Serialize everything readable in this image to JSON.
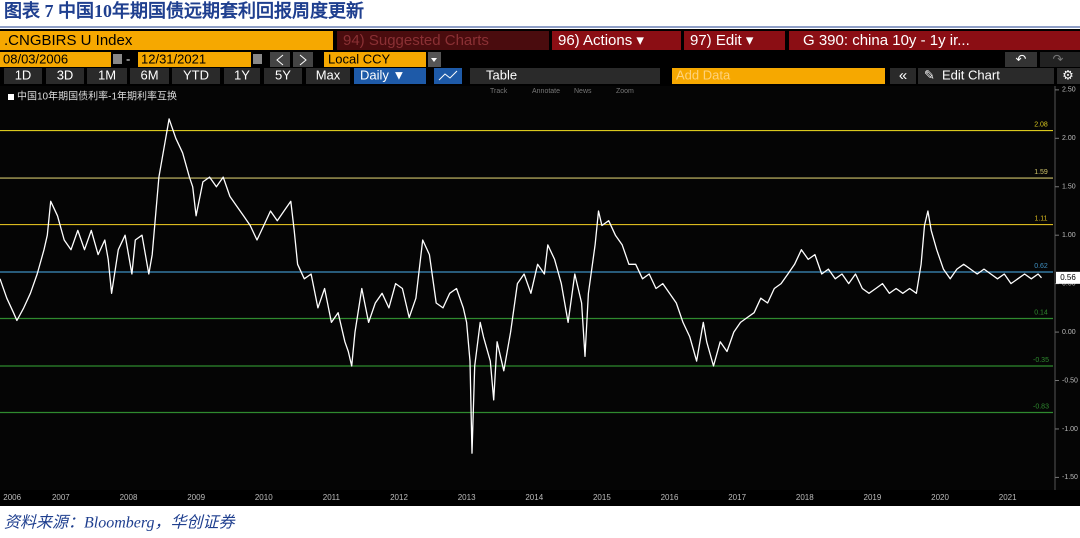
{
  "header": {
    "title": "图表 7  中国10年期国债远期套利回报周度更新"
  },
  "toolbar": {
    "security": ".CNGBIRS U Index",
    "suggested": "94) Suggested Charts",
    "actions": "96) Actions ▾",
    "edit": "97) Edit ▾",
    "function": "G 390: china 10y - 1y ir...",
    "start_date": "08/03/2006",
    "dash": "-",
    "end_date": "12/31/2021",
    "currency": "Local CCY",
    "periods": [
      "1D",
      "3D",
      "1M",
      "6M",
      "YTD",
      "1Y",
      "5Y",
      "Max"
    ],
    "frequency": "Daily ▼",
    "table": "Table",
    "add_data": "Add Data",
    "collapse": "«",
    "edit_chart": "Edit Chart",
    "tools": [
      "Track",
      "Annotate",
      "News",
      "Zoom"
    ]
  },
  "chart_data": {
    "type": "line",
    "xlim": [
      2006.6,
      2022.2
    ],
    "ylim": [
      -1.63,
      2.54
    ],
    "xticks": [
      {
        "value": 2006.78,
        "label": "2006"
      },
      {
        "value": 2007.5,
        "label": "2007"
      },
      {
        "value": 2008.5,
        "label": "2008"
      },
      {
        "value": 2009.5,
        "label": "2009"
      },
      {
        "value": 2010.5,
        "label": "2010"
      },
      {
        "value": 2011.5,
        "label": "2011"
      },
      {
        "value": 2012.5,
        "label": "2012"
      },
      {
        "value": 2013.5,
        "label": "2013"
      },
      {
        "value": 2014.5,
        "label": "2014"
      },
      {
        "value": 2015.5,
        "label": "2015"
      },
      {
        "value": 2016.5,
        "label": "2016"
      },
      {
        "value": 2017.5,
        "label": "2017"
      },
      {
        "value": 2018.5,
        "label": "2018"
      },
      {
        "value": 2019.5,
        "label": "2019"
      },
      {
        "value": 2020.5,
        "label": "2020"
      },
      {
        "value": 2021.5,
        "label": "2021"
      }
    ],
    "yticks": [
      {
        "value": 2.5,
        "label": "2.50"
      },
      {
        "value": 2,
        "label": "2.00"
      },
      {
        "value": 1.5,
        "label": "1.50"
      },
      {
        "value": 1,
        "label": "1.00"
      },
      {
        "value": 0.5,
        "label": "0.50"
      },
      {
        "value": 0,
        "label": "0.00"
      },
      {
        "value": -0.5,
        "label": "-0.50"
      },
      {
        "value": -1,
        "label": "-1.00"
      },
      {
        "value": -1.5,
        "label": "-1.50"
      }
    ],
    "ref_lines": [
      {
        "value": 2.08,
        "color": "#d9c81e"
      },
      {
        "value": 1.59,
        "color": "#cfc46a"
      },
      {
        "value": 1.11,
        "color": "#d9b91e"
      },
      {
        "value": 0.62,
        "color": "#3f8fc0"
      },
      {
        "value": 0.14,
        "color": "#2f8a2f"
      },
      {
        "value": -0.35,
        "color": "#2f8a2f"
      },
      {
        "value": -0.83,
        "color": "#2f8a2f"
      }
    ],
    "series": [
      {
        "name": "中国10年期国债利率-1年期利率互换",
        "color": "#ffffff",
        "x": [
          2006.6,
          2006.7,
          2006.8,
          2006.85,
          2006.95,
          2007.05,
          2007.15,
          2007.25,
          2007.3,
          2007.35,
          2007.45,
          2007.55,
          2007.65,
          2007.75,
          2007.85,
          2007.95,
          2008.05,
          2008.15,
          2008.2,
          2008.25,
          2008.35,
          2008.45,
          2008.55,
          2008.6,
          2008.7,
          2008.8,
          2008.85,
          2008.95,
          2009.05,
          2009.1,
          2009.2,
          2009.3,
          2009.4,
          2009.45,
          2009.5,
          2009.6,
          2009.7,
          2009.8,
          2009.9,
          2010.0,
          2010.1,
          2010.2,
          2010.3,
          2010.4,
          2010.5,
          2010.6,
          2010.7,
          2010.8,
          2010.9,
          2010.95,
          2011.0,
          2011.1,
          2011.2,
          2011.3,
          2011.4,
          2011.5,
          2011.6,
          2011.7,
          2011.75,
          2011.8,
          2011.85,
          2011.95,
          2012.05,
          2012.15,
          2012.25,
          2012.35,
          2012.45,
          2012.55,
          2012.65,
          2012.75,
          2012.85,
          2012.95,
          2013.05,
          2013.15,
          2013.25,
          2013.35,
          2013.45,
          2013.5,
          2013.55,
          2013.58,
          2013.62,
          2013.7,
          2013.75,
          2013.85,
          2013.9,
          2013.95,
          2014.05,
          2014.15,
          2014.25,
          2014.35,
          2014.45,
          2014.55,
          2014.65,
          2014.7,
          2014.8,
          2014.9,
          2015.0,
          2015.1,
          2015.2,
          2015.25,
          2015.3,
          2015.4,
          2015.45,
          2015.5,
          2015.6,
          2015.7,
          2015.8,
          2015.9,
          2016.0,
          2016.1,
          2016.2,
          2016.3,
          2016.4,
          2016.5,
          2016.6,
          2016.7,
          2016.8,
          2016.9,
          2017.0,
          2017.05,
          2017.15,
          2017.25,
          2017.35,
          2017.45,
          2017.55,
          2017.65,
          2017.75,
          2017.85,
          2017.95,
          2018.05,
          2018.15,
          2018.25,
          2018.35,
          2018.45,
          2018.55,
          2018.65,
          2018.75,
          2018.85,
          2018.95,
          2019.05,
          2019.15,
          2019.25,
          2019.35,
          2019.45,
          2019.55,
          2019.65,
          2019.75,
          2019.85,
          2019.95,
          2020.05,
          2020.15,
          2020.22,
          2020.27,
          2020.32,
          2020.37,
          2020.45,
          2020.55,
          2020.65,
          2020.75,
          2020.85,
          2020.95,
          2021.05,
          2021.15,
          2021.25,
          2021.35,
          2021.45,
          2021.55,
          2021.65,
          2021.75,
          2021.85,
          2021.95,
          2022.0
        ],
        "values": [
          0.55,
          0.35,
          0.2,
          0.12,
          0.25,
          0.4,
          0.6,
          0.85,
          1.0,
          1.35,
          1.2,
          0.95,
          0.85,
          1.05,
          0.85,
          1.05,
          0.8,
          0.95,
          0.75,
          0.4,
          0.85,
          1.0,
          0.6,
          0.95,
          1.0,
          0.6,
          0.8,
          1.6,
          2.0,
          2.2,
          2.0,
          1.85,
          1.6,
          1.5,
          1.2,
          1.55,
          1.6,
          1.5,
          1.6,
          1.4,
          1.3,
          1.2,
          1.1,
          0.95,
          1.1,
          1.25,
          1.15,
          1.25,
          1.35,
          1.05,
          0.7,
          0.55,
          0.6,
          0.25,
          0.45,
          0.1,
          0.2,
          -0.1,
          -0.2,
          -0.35,
          0.0,
          0.45,
          0.1,
          0.3,
          0.4,
          0.25,
          0.5,
          0.45,
          0.15,
          0.35,
          0.95,
          0.8,
          0.3,
          0.25,
          0.4,
          0.45,
          0.25,
          0.1,
          -0.3,
          -1.25,
          -0.35,
          0.1,
          -0.05,
          -0.3,
          -0.7,
          -0.1,
          -0.4,
          0.0,
          0.5,
          0.6,
          0.4,
          0.7,
          0.6,
          0.9,
          0.75,
          0.5,
          0.1,
          0.6,
          0.3,
          -0.25,
          0.4,
          0.9,
          1.25,
          1.1,
          1.15,
          1.0,
          0.9,
          0.7,
          0.7,
          0.55,
          0.6,
          0.45,
          0.5,
          0.4,
          0.3,
          0.1,
          -0.05,
          -0.3,
          0.1,
          -0.1,
          -0.35,
          -0.1,
          -0.2,
          0.0,
          0.1,
          0.15,
          0.2,
          0.35,
          0.3,
          0.45,
          0.5,
          0.6,
          0.7,
          0.85,
          0.75,
          0.8,
          0.6,
          0.65,
          0.55,
          0.6,
          0.5,
          0.6,
          0.45,
          0.4,
          0.45,
          0.5,
          0.4,
          0.45,
          0.4,
          0.45,
          0.4,
          0.7,
          1.1,
          1.25,
          1.05,
          0.85,
          0.65,
          0.55,
          0.65,
          0.7,
          0.65,
          0.6,
          0.65,
          0.6,
          0.55,
          0.6,
          0.5,
          0.55,
          0.6,
          0.55,
          0.6,
          0.56
        ]
      }
    ]
  },
  "source": "资料来源：Bloomberg，华创证券"
}
